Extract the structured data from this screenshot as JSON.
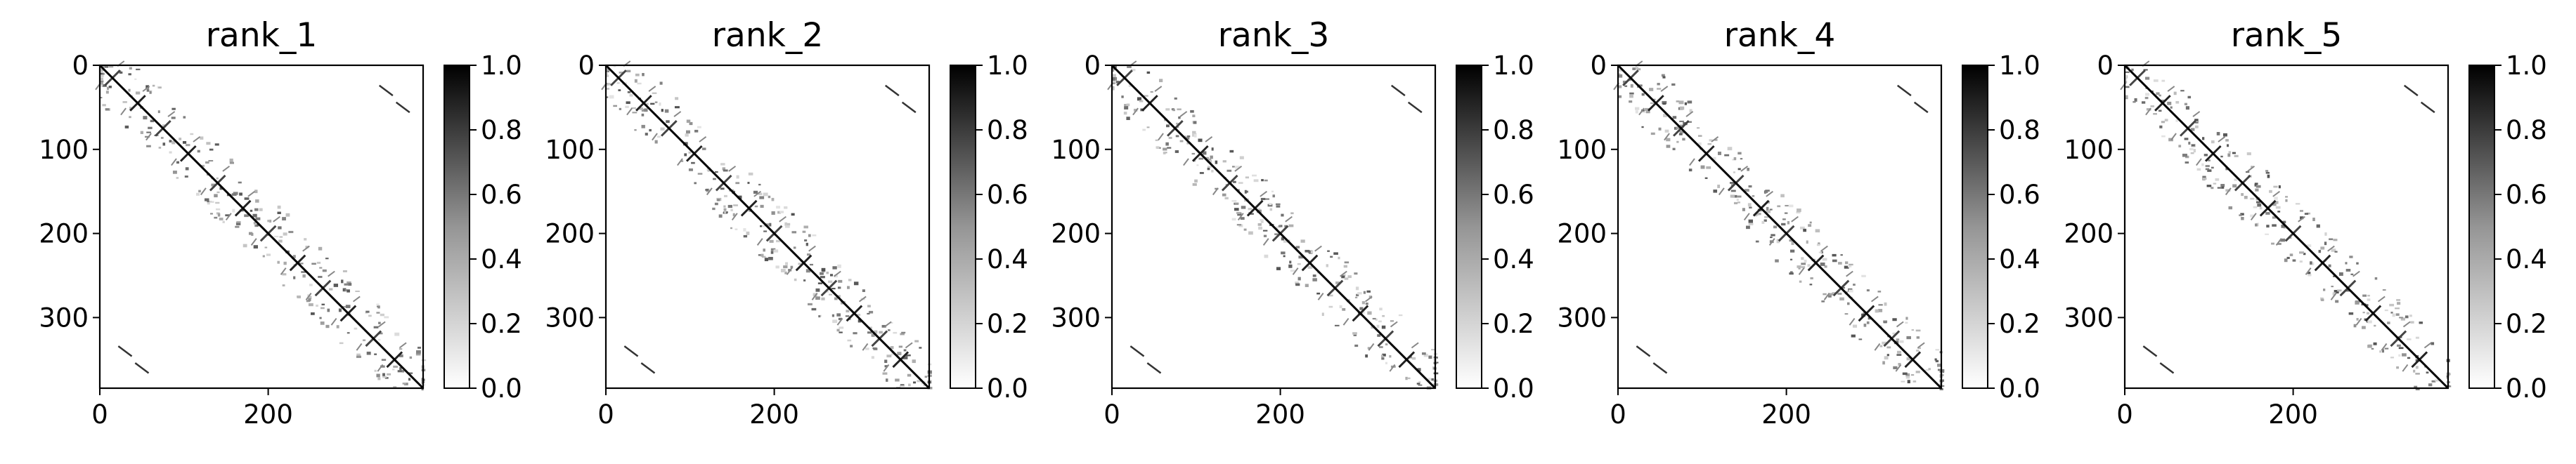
{
  "figure": {
    "panel_count": 5
  },
  "chart_data": [
    {
      "type": "heatmap",
      "title": "rank_1",
      "matrix_size": 384,
      "xticks": [
        0,
        200
      ],
      "yticks": [
        0,
        100,
        200,
        300
      ],
      "xlim": [
        0,
        384
      ],
      "ylim": [
        384,
        0
      ],
      "colorbar": {
        "label": "",
        "ticks": [
          0.0,
          0.2,
          0.4,
          0.6,
          0.8,
          1.0
        ],
        "tick_labels": [
          "0.0",
          "0.2",
          "0.4",
          "0.6",
          "0.8",
          "1.0"
        ],
        "range": [
          0,
          1
        ],
        "colormap": "Greys"
      },
      "features": {
        "diagonal": {
          "value": 1.0
        },
        "x_motifs_along_diagonal": [
          15,
          45,
          75,
          105,
          140,
          170,
          200,
          235,
          265,
          295,
          325,
          350
        ],
        "corner_contacts": [
          [
            340,
            30
          ],
          [
            30,
            340
          ],
          [
            360,
            50
          ],
          [
            50,
            360
          ]
        ]
      }
    },
    {
      "type": "heatmap",
      "title": "rank_2",
      "matrix_size": 384,
      "xticks": [
        0,
        200
      ],
      "yticks": [
        0,
        100,
        200,
        300
      ],
      "xlim": [
        0,
        384
      ],
      "ylim": [
        384,
        0
      ],
      "colorbar": {
        "label": "",
        "ticks": [
          0.0,
          0.2,
          0.4,
          0.6,
          0.8,
          1.0
        ],
        "tick_labels": [
          "0.0",
          "0.2",
          "0.4",
          "0.6",
          "0.8",
          "1.0"
        ],
        "range": [
          0,
          1
        ],
        "colormap": "Greys"
      },
      "features": {
        "diagonal": {
          "value": 1.0
        },
        "x_motifs_along_diagonal": [
          15,
          45,
          75,
          105,
          140,
          170,
          200,
          235,
          265,
          295,
          325,
          350
        ],
        "corner_contacts": [
          [
            340,
            30
          ],
          [
            30,
            340
          ],
          [
            360,
            50
          ],
          [
            50,
            360
          ]
        ]
      }
    },
    {
      "type": "heatmap",
      "title": "rank_3",
      "matrix_size": 384,
      "xticks": [
        0,
        200
      ],
      "yticks": [
        0,
        100,
        200,
        300
      ],
      "xlim": [
        0,
        384
      ],
      "ylim": [
        384,
        0
      ],
      "colorbar": {
        "label": "",
        "ticks": [
          0.0,
          0.2,
          0.4,
          0.6,
          0.8,
          1.0
        ],
        "tick_labels": [
          "0.0",
          "0.2",
          "0.4",
          "0.6",
          "0.8",
          "1.0"
        ],
        "range": [
          0,
          1
        ],
        "colormap": "Greys"
      },
      "features": {
        "diagonal": {
          "value": 1.0
        },
        "x_motifs_along_diagonal": [
          15,
          45,
          75,
          105,
          140,
          170,
          200,
          235,
          265,
          295,
          325,
          350
        ],
        "corner_contacts": [
          [
            340,
            30
          ],
          [
            30,
            340
          ],
          [
            360,
            50
          ],
          [
            50,
            360
          ]
        ]
      }
    },
    {
      "type": "heatmap",
      "title": "rank_4",
      "matrix_size": 384,
      "xticks": [
        0,
        200
      ],
      "yticks": [
        0,
        100,
        200,
        300
      ],
      "xlim": [
        0,
        384
      ],
      "ylim": [
        384,
        0
      ],
      "colorbar": {
        "label": "",
        "ticks": [
          0.0,
          0.2,
          0.4,
          0.6,
          0.8,
          1.0
        ],
        "tick_labels": [
          "0.0",
          "0.2",
          "0.4",
          "0.6",
          "0.8",
          "1.0"
        ],
        "range": [
          0,
          1
        ],
        "colormap": "Greys"
      },
      "features": {
        "diagonal": {
          "value": 1.0
        },
        "x_motifs_along_diagonal": [
          15,
          45,
          75,
          105,
          140,
          170,
          200,
          235,
          265,
          295,
          325,
          350
        ],
        "corner_contacts": [
          [
            340,
            30
          ],
          [
            30,
            340
          ],
          [
            360,
            50
          ],
          [
            50,
            360
          ]
        ]
      }
    },
    {
      "type": "heatmap",
      "title": "rank_5",
      "matrix_size": 384,
      "xticks": [
        0,
        200
      ],
      "yticks": [
        0,
        100,
        200,
        300
      ],
      "xlim": [
        0,
        384
      ],
      "ylim": [
        384,
        0
      ],
      "colorbar": {
        "label": "",
        "ticks": [
          0.0,
          0.2,
          0.4,
          0.6,
          0.8,
          1.0
        ],
        "tick_labels": [
          "0.0",
          "0.2",
          "0.4",
          "0.6",
          "0.8",
          "1.0"
        ],
        "range": [
          0,
          1
        ],
        "colormap": "Greys"
      },
      "features": {
        "diagonal": {
          "value": 1.0
        },
        "x_motifs_along_diagonal": [
          15,
          45,
          75,
          105,
          140,
          170,
          200,
          235,
          265,
          295,
          325,
          350
        ],
        "corner_contacts": [
          [
            340,
            30
          ],
          [
            30,
            340
          ],
          [
            360,
            50
          ],
          [
            50,
            360
          ]
        ]
      }
    }
  ]
}
